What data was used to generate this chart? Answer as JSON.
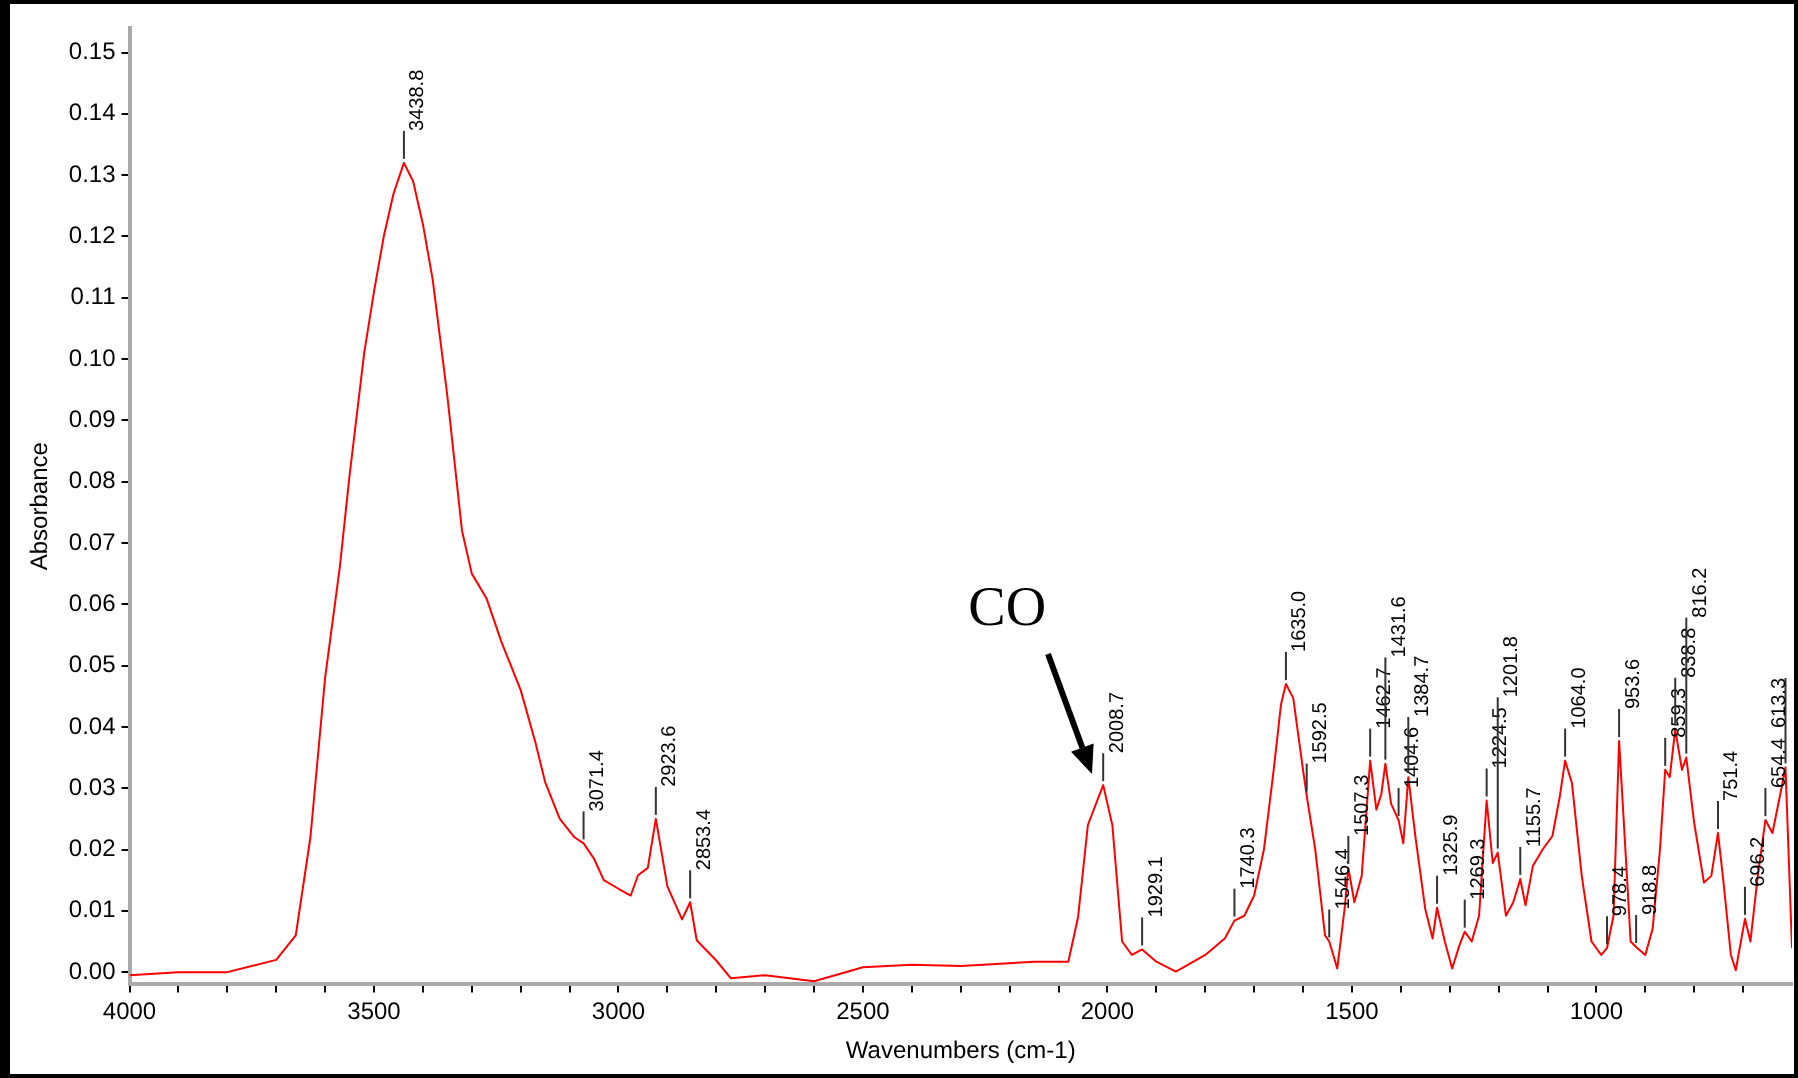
{
  "chart_data": {
    "type": "line",
    "xlabel": "Wavenumbers (cm-1)",
    "ylabel": "Absorbance",
    "x": [
      4000,
      3900,
      3800,
      3750,
      3700,
      3660,
      3630,
      3600,
      3570,
      3550,
      3520,
      3500,
      3480,
      3460,
      3438.8,
      3420,
      3400,
      3380,
      3350,
      3320,
      3300,
      3270,
      3240,
      3200,
      3170,
      3150,
      3120,
      3090,
      3071.4,
      3050,
      3030,
      3000,
      2975,
      2960,
      2940,
      2923.6,
      2900,
      2870,
      2853.4,
      2840,
      2800,
      2770,
      2700,
      2600,
      2500,
      2400,
      2300,
      2150,
      2080,
      2060,
      2040,
      2008.7,
      1990,
      1970,
      1950,
      1929.1,
      1900,
      1860,
      1800,
      1760,
      1740.3,
      1720,
      1700,
      1680,
      1660,
      1645,
      1635,
      1620,
      1600,
      1592.5,
      1575,
      1555,
      1546.4,
      1530,
      1515,
      1507.3,
      1495,
      1480,
      1462.7,
      1450,
      1440,
      1431.6,
      1420,
      1404.6,
      1395,
      1384.7,
      1370,
      1350,
      1335,
      1325.9,
      1310,
      1295,
      1280,
      1269.3,
      1255,
      1240,
      1224.5,
      1212,
      1201.8,
      1185,
      1170,
      1155.7,
      1145,
      1130,
      1110,
      1090,
      1075,
      1064,
      1050,
      1030,
      1010,
      990,
      978.4,
      965,
      953.6,
      940,
      930,
      918.8,
      900,
      885,
      870,
      859.3,
      850,
      838.8,
      825,
      816.2,
      800,
      780,
      765,
      751.4,
      740,
      725,
      715,
      696.2,
      685,
      670,
      654.4,
      640,
      625,
      613.3,
      600
    ],
    "series": [
      {
        "color": "#ff0000",
        "values": [
          -0.0005,
          0.0,
          0.0,
          0.001,
          0.002,
          0.006,
          0.022,
          0.048,
          0.066,
          0.081,
          0.101,
          0.111,
          0.12,
          0.127,
          0.132,
          0.129,
          0.122,
          0.113,
          0.094,
          0.072,
          0.065,
          0.061,
          0.054,
          0.046,
          0.0375,
          0.031,
          0.025,
          0.022,
          0.021,
          0.0185,
          0.015,
          0.0136,
          0.0125,
          0.0158,
          0.017,
          0.025,
          0.014,
          0.0086,
          0.0114,
          0.0052,
          0.0019,
          -0.001,
          -0.0005,
          -0.0015,
          0.0008,
          0.0012,
          0.001,
          0.0017,
          0.0017,
          0.009,
          0.024,
          0.0305,
          0.024,
          0.005,
          0.0028,
          0.0037,
          0.0017,
          0.0001,
          0.0028,
          0.0055,
          0.0084,
          0.0092,
          0.0125,
          0.02,
          0.033,
          0.0437,
          0.047,
          0.0447,
          0.033,
          0.0288,
          0.02,
          0.006,
          0.005,
          0.0006,
          0.0103,
          0.017,
          0.0114,
          0.0157,
          0.0345,
          0.0265,
          0.029,
          0.034,
          0.0275,
          0.0248,
          0.021,
          0.0318,
          0.022,
          0.0103,
          0.0055,
          0.0105,
          0.005,
          0.0006,
          0.0044,
          0.0066,
          0.005,
          0.0092,
          0.028,
          0.0178,
          0.0195,
          0.0092,
          0.0114,
          0.0152,
          0.0109,
          0.0173,
          0.02,
          0.0222,
          0.0286,
          0.0345,
          0.0308,
          0.0157,
          0.005,
          0.0028,
          0.0039,
          0.0092,
          0.0377,
          0.019,
          0.005,
          0.0041,
          0.0028,
          0.0071,
          0.02,
          0.033,
          0.0318,
          0.0396,
          0.033,
          0.035,
          0.0243,
          0.0146,
          0.0157,
          0.0227,
          0.0146,
          0.0028,
          0.0003,
          0.0087,
          0.005,
          0.0157,
          0.0248,
          0.0227,
          0.0286,
          0.0334,
          0.0039
        ]
      }
    ],
    "xlim": [
      4000,
      600
    ],
    "xticks": [
      4000,
      {
        "value": 3900,
        "label": null
      },
      {
        "value": 3800,
        "label": null
      },
      {
        "value": 3700,
        "label": null
      },
      {
        "value": 3600,
        "label": null
      },
      3500,
      {
        "value": 3400,
        "label": null
      },
      {
        "value": 3300,
        "label": null
      },
      {
        "value": 3200,
        "label": null
      },
      {
        "value": 3100,
        "label": null
      },
      3000,
      {
        "value": 2900,
        "label": null
      },
      {
        "value": 2800,
        "label": null
      },
      {
        "value": 2700,
        "label": null
      },
      {
        "value": 2600,
        "label": null
      },
      2500,
      {
        "value": 2400,
        "label": null
      },
      {
        "value": 2300,
        "label": null
      },
      {
        "value": 2200,
        "label": null
      },
      {
        "value": 2100,
        "label": null
      },
      2000,
      {
        "value": 1900,
        "label": null
      },
      {
        "value": 1800,
        "label": null
      },
      {
        "value": 1700,
        "label": null
      },
      {
        "value": 1600,
        "label": null
      },
      1500,
      {
        "value": 1400,
        "label": null
      },
      {
        "value": 1300,
        "label": null
      },
      {
        "value": 1200,
        "label": null
      },
      {
        "value": 1100,
        "label": null
      },
      1000,
      {
        "value": 900,
        "label": null
      },
      {
        "value": 800,
        "label": null
      },
      {
        "value": 700,
        "label": null
      }
    ],
    "ylim": [
      -0.002,
      0.154
    ],
    "yticks": [
      {
        "value": 0,
        "label": "0.00"
      },
      0.01,
      0.02,
      0.03,
      0.04,
      0.05,
      0.06,
      0.07,
      0.08,
      0.09,
      {
        "value": 0.1,
        "label": "0.10"
      },
      0.11,
      0.12,
      0.13,
      0.14,
      0.15
    ],
    "grid": false,
    "legend": false,
    "marker": "none",
    "line_style": "solid",
    "annotations": [
      {
        "text": "CO",
        "x": 2008.7,
        "y": 0.0305
      },
      {
        "text": "3438.8",
        "x": 3438.8,
        "y": 0.132
      },
      {
        "text": "3071.4",
        "x": 3071.4,
        "y": 0.021
      },
      {
        "text": "2923.6",
        "x": 2923.6,
        "y": 0.025
      },
      {
        "text": "2853.4",
        "x": 2853.4,
        "y": 0.0114
      },
      {
        "text": "2008.7",
        "x": 2008.7,
        "y": 0.0305
      },
      {
        "text": "1929.1",
        "x": 1929.1,
        "y": 0.0037
      },
      {
        "text": "1740.3",
        "x": 1740.3,
        "y": 0.0084
      },
      {
        "text": "1635.0",
        "x": 1635,
        "y": 0.047
      },
      {
        "text": "1592.5",
        "x": 1592.5,
        "y": 0.0288
      },
      {
        "text": "1546.4",
        "x": 1546.4,
        "y": 0.005
      },
      {
        "text": "1507.3",
        "x": 1507.3,
        "y": 0.017
      },
      {
        "text": "1462.7",
        "x": 1462.7,
        "y": 0.0345
      },
      {
        "text": "1431.6",
        "x": 1431.6,
        "y": 0.034
      },
      {
        "text": "1404.6",
        "x": 1404.6,
        "y": 0.0248
      },
      {
        "text": "1384.7",
        "x": 1384.7,
        "y": 0.0318
      },
      {
        "text": "1325.9",
        "x": 1325.9,
        "y": 0.0105
      },
      {
        "text": "1269.3",
        "x": 1269.3,
        "y": 0.0066
      },
      {
        "text": "1224.5",
        "x": 1224.5,
        "y": 0.028
      },
      {
        "text": "1201.8",
        "x": 1201.8,
        "y": 0.0195
      },
      {
        "text": "1155.7",
        "x": 1155.7,
        "y": 0.0152
      },
      {
        "text": "1064.0",
        "x": 1064,
        "y": 0.0345
      },
      {
        "text": "978.4",
        "x": 978.4,
        "y": 0.0039
      },
      {
        "text": "953.6",
        "x": 953.6,
        "y": 0.0377
      },
      {
        "text": "918.8",
        "x": 918.8,
        "y": 0.0041
      },
      {
        "text": "859.3",
        "x": 859.3,
        "y": 0.033
      },
      {
        "text": "838.8",
        "x": 838.8,
        "y": 0.0396
      },
      {
        "text": "816.2",
        "x": 816.2,
        "y": 0.035
      },
      {
        "text": "751.4",
        "x": 751.4,
        "y": 0.0227
      },
      {
        "text": "696.2",
        "x": 696.2,
        "y": 0.0087
      },
      {
        "text": "654.4",
        "x": 654.4,
        "y": 0.0248
      },
      {
        "text": "613.3",
        "x": 613.3,
        "y": 0.0334
      }
    ]
  }
}
